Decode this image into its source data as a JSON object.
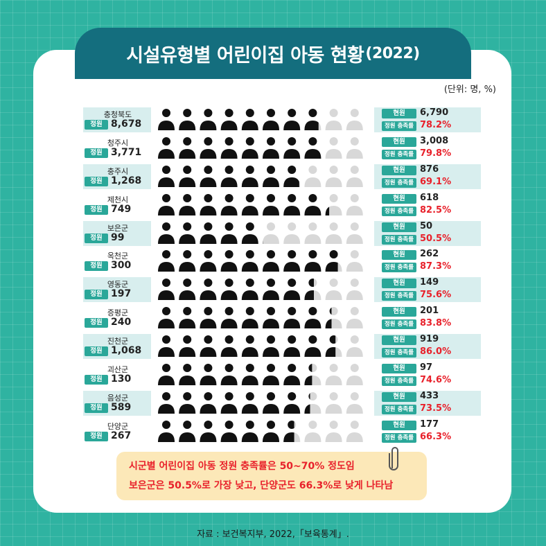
{
  "title": {
    "main": "시설유형별 어린이집 아동 현황",
    "year": "(2022)"
  },
  "unit": "(단위: 명, %)",
  "labels": {
    "capacity": "정원",
    "current": "현원",
    "fill_rate": "정원 충족률"
  },
  "colors": {
    "filled": "#111111",
    "empty": "#d8d8d8",
    "accent": "#2aa799",
    "rate": "#e8212b"
  },
  "icon": "person-icon",
  "icons_per_row": 10,
  "chart_data": {
    "type": "pictogram",
    "categories": [
      "충청북도",
      "청주시",
      "충주시",
      "제천시",
      "보은군",
      "옥천군",
      "영동군",
      "증평군",
      "진천군",
      "괴산군",
      "음성군",
      "단양군"
    ],
    "series": [
      {
        "name": "정원",
        "values": [
          "8,678",
          "3,771",
          "1,268",
          "749",
          "99",
          "300",
          "197",
          "240",
          "1,068",
          "130",
          "589",
          "267"
        ]
      },
      {
        "name": "현원",
        "values": [
          "6,790",
          "3,008",
          "876",
          "618",
          "50",
          "262",
          "149",
          "201",
          "919",
          "97",
          "433",
          "177"
        ]
      },
      {
        "name": "정원 충족률",
        "values": [
          "78.2%",
          "79.8%",
          "69.1%",
          "82.5%",
          "50.5%",
          "87.3%",
          "75.6%",
          "83.8%",
          "86.0%",
          "74.6%",
          "73.5%",
          "66.3%"
        ]
      }
    ],
    "rates": [
      78.2,
      79.8,
      69.1,
      82.5,
      50.5,
      87.3,
      75.6,
      83.8,
      86.0,
      74.6,
      73.5,
      66.3
    ]
  },
  "note": {
    "line1": "시군별 어린이집 아동 정원 충족률은 50~70% 정도임",
    "line2": "보은군은 50.5%로 가장 낮고, 단양군도 66.3%로 낮게 나타남"
  },
  "source": "자료 : 보건복지부, 2022,「보육통계」."
}
